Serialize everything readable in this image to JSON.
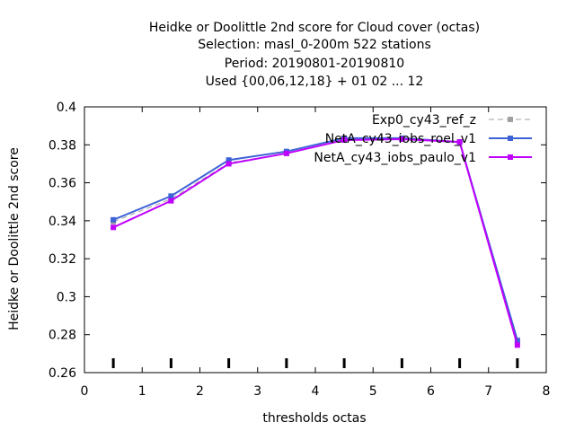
{
  "chart_data": {
    "type": "line",
    "title_lines": [
      "Heidke or Doolittle 2nd score  for Cloud cover (octas)",
      "Selection: masl_0-200m    522 stations",
      "Period: 20190801-20190810",
      "Used {00,06,12,18} + 01 02 ... 12"
    ],
    "xlabel": "thresholds octas",
    "ylabel": "Heidke or Doolittle 2nd score",
    "xlim": [
      0,
      8
    ],
    "ylim": [
      0.26,
      0.4
    ],
    "xticks": [
      0,
      1,
      2,
      3,
      4,
      5,
      6,
      7,
      8
    ],
    "yticks": [
      0.26,
      0.28,
      0.3,
      0.32,
      0.34,
      0.36,
      0.38,
      0.4
    ],
    "xtick_labels": [
      "0",
      "1",
      "2",
      "3",
      "4",
      "5",
      "6",
      "7",
      "8"
    ],
    "ytick_labels": [
      "0.26",
      "0.28",
      "0.3",
      "0.32",
      "0.34",
      "0.36",
      "0.38",
      "0.4"
    ],
    "grid": false,
    "legend_position": "top-right",
    "x": [
      0.5,
      1.5,
      2.5,
      3.5,
      4.5,
      5.5,
      6.5,
      7.5
    ],
    "series": [
      {
        "name": "Exp0_cy43_ref_z",
        "color": "#a0a0a0",
        "dashed": true,
        "values": [
          0.3395,
          0.3515,
          0.3705,
          0.3755,
          0.3825,
          0.383,
          0.3815,
          0.276
        ]
      },
      {
        "name": "NetA_cy43_iobs_roel_v1",
        "color": "#3c62d6",
        "dashed": false,
        "values": [
          0.3405,
          0.353,
          0.372,
          0.3765,
          0.3835,
          0.3835,
          0.3815,
          0.277
        ]
      },
      {
        "name": "NetA_cy43_iobs_paulo_v1",
        "color": "#c000ff",
        "dashed": false,
        "values": [
          0.3365,
          0.3505,
          0.37,
          0.3755,
          0.3825,
          0.383,
          0.3815,
          0.2745
        ]
      }
    ],
    "bottom_tick_markers_x": [
      0.5,
      1.5,
      2.5,
      3.5,
      4.5,
      5.5,
      6.5,
      7.5
    ]
  }
}
